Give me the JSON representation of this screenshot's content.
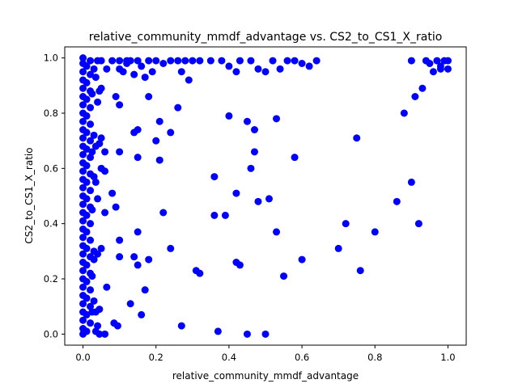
{
  "chart_data": {
    "type": "scatter",
    "title": "relative_community_mmdf_advantage vs. CS2_to_CS1_X_ratio",
    "xlabel": "relative_community_mmdf_advantage",
    "ylabel": "CS2_to_CS1_X_ratio",
    "xlim": [
      -0.05,
      1.05
    ],
    "ylim": [
      -0.04,
      1.04
    ],
    "xticks": [
      {
        "value": 0.0,
        "label": "0.0"
      },
      {
        "value": 0.2,
        "label": "0.2"
      },
      {
        "value": 0.4,
        "label": "0.4"
      },
      {
        "value": 0.6,
        "label": "0.6"
      },
      {
        "value": 0.8,
        "label": "0.8"
      },
      {
        "value": 1.0,
        "label": "1.0"
      }
    ],
    "yticks": [
      {
        "value": 0.0,
        "label": "0.0"
      },
      {
        "value": 0.2,
        "label": "0.2"
      },
      {
        "value": 0.4,
        "label": "0.4"
      },
      {
        "value": 0.6,
        "label": "0.6"
      },
      {
        "value": 0.8,
        "label": "0.8"
      },
      {
        "value": 1.0,
        "label": "1.0"
      }
    ],
    "grid": false,
    "legend": "none",
    "marker_color": "#0000ff",
    "series": [
      {
        "points": [
          [
            0.0,
            0.0
          ],
          [
            0.0,
            0.02
          ],
          [
            0.0,
            0.05
          ],
          [
            0.0,
            0.08
          ],
          [
            0.0,
            0.11
          ],
          [
            0.0,
            0.14
          ],
          [
            0.0,
            0.17
          ],
          [
            0.0,
            0.2
          ],
          [
            0.0,
            0.23
          ],
          [
            0.0,
            0.26
          ],
          [
            0.0,
            0.29
          ],
          [
            0.0,
            0.32
          ],
          [
            0.0,
            0.35
          ],
          [
            0.0,
            0.38
          ],
          [
            0.0,
            0.41
          ],
          [
            0.0,
            0.44
          ],
          [
            0.0,
            0.47
          ],
          [
            0.0,
            0.5
          ],
          [
            0.0,
            0.53
          ],
          [
            0.0,
            0.56
          ],
          [
            0.0,
            0.59
          ],
          [
            0.0,
            0.62
          ],
          [
            0.0,
            0.65
          ],
          [
            0.0,
            0.68
          ],
          [
            0.0,
            0.71
          ],
          [
            0.0,
            0.74
          ],
          [
            0.0,
            0.77
          ],
          [
            0.0,
            0.8
          ],
          [
            0.0,
            0.83
          ],
          [
            0.0,
            0.86
          ],
          [
            0.0,
            0.89
          ],
          [
            0.0,
            0.92
          ],
          [
            0.0,
            0.95
          ],
          [
            0.0,
            0.98
          ],
          [
            0.0,
            1.0
          ],
          [
            0.01,
            0.01
          ],
          [
            0.01,
            0.07
          ],
          [
            0.01,
            0.13
          ],
          [
            0.01,
            0.19
          ],
          [
            0.01,
            0.25
          ],
          [
            0.01,
            0.31
          ],
          [
            0.01,
            0.37
          ],
          [
            0.01,
            0.43
          ],
          [
            0.01,
            0.49
          ],
          [
            0.01,
            0.55
          ],
          [
            0.01,
            0.61
          ],
          [
            0.01,
            0.67
          ],
          [
            0.01,
            0.73
          ],
          [
            0.01,
            0.79
          ],
          [
            0.01,
            0.85
          ],
          [
            0.01,
            0.91
          ],
          [
            0.01,
            0.97
          ],
          [
            0.02,
            0.04
          ],
          [
            0.02,
            0.1
          ],
          [
            0.02,
            0.16
          ],
          [
            0.02,
            0.22
          ],
          [
            0.02,
            0.28
          ],
          [
            0.02,
            0.34
          ],
          [
            0.02,
            0.4
          ],
          [
            0.02,
            0.46
          ],
          [
            0.02,
            0.52
          ],
          [
            0.02,
            0.58
          ],
          [
            0.02,
            0.64
          ],
          [
            0.02,
            0.7
          ],
          [
            0.02,
            0.76
          ],
          [
            0.02,
            0.82
          ],
          [
            0.02,
            0.88
          ],
          [
            0.02,
            0.94
          ],
          [
            0.02,
            0.99
          ],
          [
            0.025,
            0.08
          ],
          [
            0.025,
            0.21
          ],
          [
            0.025,
            0.45
          ],
          [
            0.025,
            0.66
          ],
          [
            0.025,
            0.87
          ],
          [
            0.03,
            0.12
          ],
          [
            0.03,
            0.27
          ],
          [
            0.03,
            0.3
          ],
          [
            0.03,
            0.57
          ],
          [
            0.03,
            0.72
          ],
          [
            0.03,
            0.96
          ],
          [
            0.035,
            0.01
          ],
          [
            0.035,
            0.08
          ],
          [
            0.035,
            0.55
          ],
          [
            0.035,
            0.68
          ],
          [
            0.035,
            0.93
          ],
          [
            0.04,
            0.03
          ],
          [
            0.04,
            0.29
          ],
          [
            0.04,
            0.49
          ],
          [
            0.04,
            0.84
          ],
          [
            0.04,
            0.99
          ],
          [
            0.045,
            0.0
          ],
          [
            0.045,
            0.09
          ],
          [
            0.045,
            0.69
          ],
          [
            0.045,
            0.88
          ],
          [
            0.05,
            0.31
          ],
          [
            0.05,
            0.6
          ],
          [
            0.05,
            0.71
          ],
          [
            0.05,
            0.89
          ],
          [
            0.05,
            0.99
          ],
          [
            0.06,
            0.0
          ],
          [
            0.06,
            0.44
          ],
          [
            0.06,
            0.59
          ],
          [
            0.06,
            0.66
          ],
          [
            0.065,
            0.17
          ],
          [
            0.065,
            0.96
          ],
          [
            0.08,
            0.51
          ],
          [
            0.08,
            0.99
          ],
          [
            0.085,
            0.04
          ],
          [
            0.09,
            0.46
          ],
          [
            0.09,
            0.86
          ],
          [
            0.095,
            0.03
          ],
          [
            0.1,
            0.34
          ],
          [
            0.1,
            0.28
          ],
          [
            0.1,
            0.66
          ],
          [
            0.1,
            0.83
          ],
          [
            0.1,
            0.96
          ],
          [
            0.12,
            0.99
          ],
          [
            0.13,
            0.11
          ],
          [
            0.14,
            0.28
          ],
          [
            0.14,
            0.73
          ],
          [
            0.15,
            0.25
          ],
          [
            0.15,
            0.37
          ],
          [
            0.15,
            0.74
          ],
          [
            0.15,
            0.64
          ],
          [
            0.16,
            0.07
          ],
          [
            0.17,
            0.16
          ],
          [
            0.18,
            0.86
          ],
          [
            0.18,
            0.27
          ],
          [
            0.2,
            0.7
          ],
          [
            0.21,
            0.63
          ],
          [
            0.21,
            0.77
          ],
          [
            0.22,
            0.44
          ],
          [
            0.24,
            0.31
          ],
          [
            0.24,
            0.73
          ],
          [
            0.26,
            0.82
          ],
          [
            0.27,
            0.03
          ],
          [
            0.31,
            0.23
          ],
          [
            0.32,
            0.22
          ],
          [
            0.36,
            0.57
          ],
          [
            0.36,
            0.43
          ],
          [
            0.37,
            0.01
          ],
          [
            0.39,
            0.43
          ],
          [
            0.4,
            0.79
          ],
          [
            0.42,
            0.26
          ],
          [
            0.42,
            0.51
          ],
          [
            0.43,
            0.25
          ],
          [
            0.45,
            0.0
          ],
          [
            0.45,
            0.77
          ],
          [
            0.46,
            0.6
          ],
          [
            0.47,
            0.74
          ],
          [
            0.47,
            0.66
          ],
          [
            0.48,
            0.48
          ],
          [
            0.5,
            0.0
          ],
          [
            0.51,
            0.49
          ],
          [
            0.53,
            0.78
          ],
          [
            0.53,
            0.37
          ],
          [
            0.55,
            0.21
          ],
          [
            0.58,
            0.64
          ],
          [
            0.6,
            0.27
          ],
          [
            0.7,
            0.31
          ],
          [
            0.72,
            0.4
          ],
          [
            0.75,
            0.71
          ],
          [
            0.76,
            0.23
          ],
          [
            0.8,
            0.37
          ],
          [
            0.86,
            0.48
          ],
          [
            0.88,
            0.8
          ],
          [
            0.9,
            0.55
          ],
          [
            0.91,
            0.86
          ],
          [
            0.92,
            0.4
          ],
          [
            0.93,
            0.89
          ],
          [
            0.1,
            0.99
          ],
          [
            0.11,
            0.95
          ],
          [
            0.12,
            0.98
          ],
          [
            0.13,
            0.99
          ],
          [
            0.14,
            0.94
          ],
          [
            0.15,
            0.99
          ],
          [
            0.16,
            0.97
          ],
          [
            0.17,
            0.93
          ],
          [
            0.18,
            0.99
          ],
          [
            0.19,
            0.95
          ],
          [
            0.2,
            0.99
          ],
          [
            0.22,
            0.98
          ],
          [
            0.24,
            0.99
          ],
          [
            0.26,
            0.99
          ],
          [
            0.27,
            0.95
          ],
          [
            0.28,
            0.99
          ],
          [
            0.29,
            0.92
          ],
          [
            0.3,
            0.99
          ],
          [
            0.32,
            0.99
          ],
          [
            0.35,
            0.99
          ],
          [
            0.38,
            0.99
          ],
          [
            0.4,
            0.97
          ],
          [
            0.42,
            0.95
          ],
          [
            0.43,
            0.99
          ],
          [
            0.46,
            0.99
          ],
          [
            0.48,
            0.96
          ],
          [
            0.5,
            0.95
          ],
          [
            0.52,
            0.99
          ],
          [
            0.54,
            0.96
          ],
          [
            0.56,
            0.99
          ],
          [
            0.58,
            0.99
          ],
          [
            0.6,
            0.98
          ],
          [
            0.62,
            0.97
          ],
          [
            0.64,
            0.99
          ],
          [
            0.9,
            0.99
          ],
          [
            0.94,
            0.99
          ],
          [
            0.95,
            0.98
          ],
          [
            0.96,
            0.95
          ],
          [
            0.97,
            0.99
          ],
          [
            0.98,
            0.97
          ],
          [
            0.99,
            0.99
          ],
          [
            1.0,
            0.99
          ],
          [
            1.0,
            0.96
          ],
          [
            0.98,
            0.96
          ]
        ]
      }
    ]
  }
}
